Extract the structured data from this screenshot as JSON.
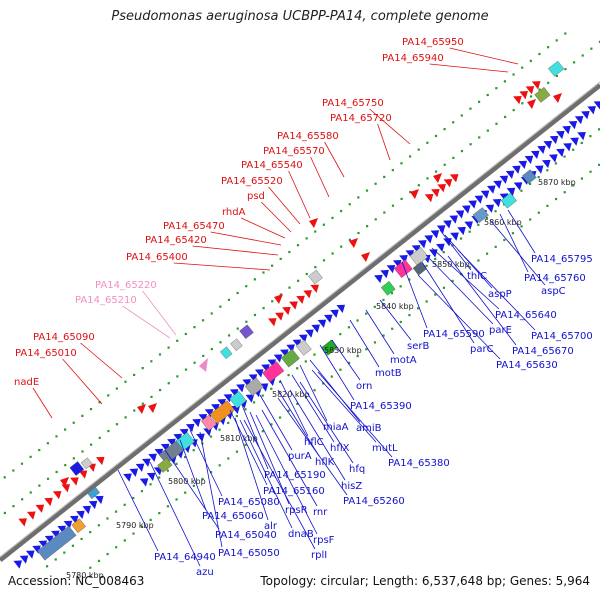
{
  "title": "Pseudomonas aeruginosa UCBPP-PA14, complete genome",
  "footer": {
    "accession": "Accession: NC_008463",
    "summary": "Topology: circular; Length: 6,537,648 bp; Genes: 5,964"
  },
  "colors": {
    "background": "#ffffff",
    "backbone": "#7f7f7f",
    "dots": "#2a9a2a",
    "upper_labels": "#dd1111",
    "lower_labels": "#1111cc",
    "faded_labels": "#f090c0"
  },
  "kbp_ticks": [
    "5790 kbp",
    "5800 kbp",
    "5810 kbp",
    "5820 kbp",
    "5830 kbp",
    "5840 kbp",
    "5850 kbp",
    "5860 kbp",
    "5870 kbp",
    "5780 kbp"
  ],
  "upper_labels": [
    "PA14_65950",
    "PA14_65940",
    "PA14_65750",
    "PA14_65720",
    "PA14_65580",
    "PA14_65570",
    "PA14_65540",
    "PA14_65520",
    "psd",
    "rhdA",
    "PA14_65470",
    "PA14_65420",
    "PA14_65400",
    "PA14_65220",
    "PA14_65210",
    "PA14_65090",
    "PA14_65010",
    "nadE"
  ],
  "lower_labels": [
    "PA14_65795",
    "PA14_65760",
    "aspC",
    "thiC",
    "aspP",
    "PA14_65640",
    "parE",
    "PA14_65700",
    "PA14_65590",
    "parC",
    "PA14_65670",
    "PA14_65630",
    "serB",
    "motA",
    "motB",
    "orn",
    "PA14_65390",
    "miaA",
    "amiB",
    "hflC",
    "hflX",
    "mutL",
    "purA",
    "hflK",
    "hfq",
    "PA14_65380",
    "PA14_65190",
    "hisZ",
    "PA14_65160",
    "PA14_65260",
    "PA14_65080",
    "rpsR",
    "rnr",
    "PA14_65060",
    "alr",
    "rpsF",
    "PA14_65040",
    "dnaB",
    "PA14_64940",
    "PA14_65050",
    "rplI",
    "azu"
  ]
}
